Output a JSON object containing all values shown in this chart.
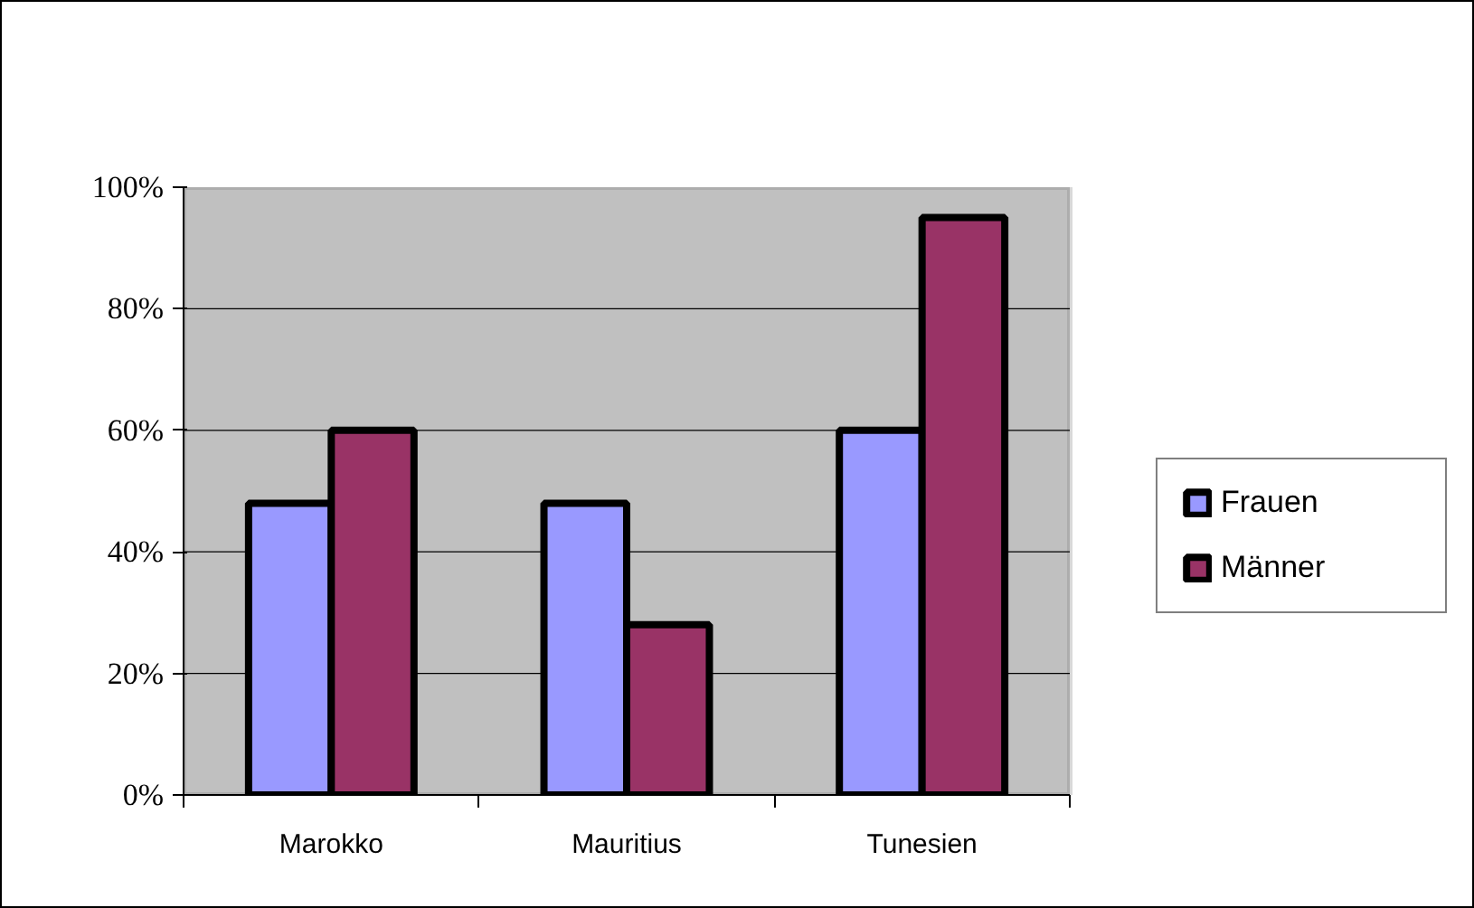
{
  "chart_data": {
    "type": "bar",
    "categories": [
      "Marokko",
      "Mauritius",
      "Tunesien"
    ],
    "series": [
      {
        "name": "Frauen",
        "color": "#9999ff",
        "values": [
          48,
          48,
          60
        ]
      },
      {
        "name": "Männer",
        "color": "#993366",
        "values": [
          60,
          28,
          95
        ]
      }
    ],
    "ylim": [
      0,
      100
    ],
    "yticks": [
      {
        "value": 0,
        "label": "0%"
      },
      {
        "value": 20,
        "label": "20%"
      },
      {
        "value": 40,
        "label": "40%"
      },
      {
        "value": 60,
        "label": "60%"
      },
      {
        "value": 80,
        "label": "80%"
      },
      {
        "value": 100,
        "label": "100%"
      }
    ],
    "grid": "y",
    "legend": "right"
  }
}
